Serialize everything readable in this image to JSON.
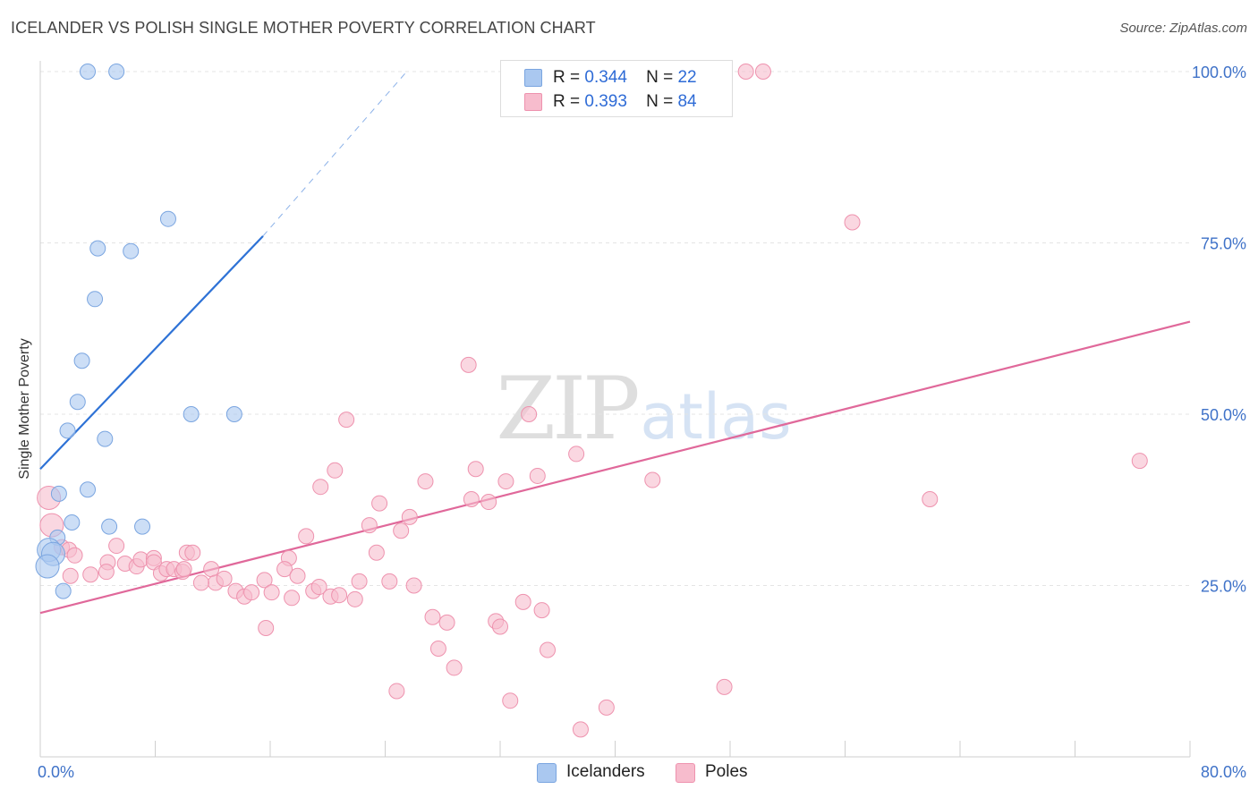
{
  "title": "ICELANDER VS POLISH SINGLE MOTHER POVERTY CORRELATION CHART",
  "source": "Source: ZipAtlas.com",
  "watermark": {
    "zip": "ZIP",
    "atlas": "atlas"
  },
  "legend": {
    "rows": [
      {
        "r_label": "R =",
        "r_value": "0.344",
        "n_label": "N =",
        "n_value": "22",
        "color": "#aac8f0",
        "border": "#7aa5e0"
      },
      {
        "r_label": "R =",
        "r_value": "0.393",
        "n_label": "N =",
        "n_value": "84",
        "color": "#f7bccd",
        "border": "#ee92ae"
      }
    ]
  },
  "bottom_legend": [
    {
      "label": "Icelanders",
      "color": "#aac8f0"
    },
    {
      "label": "Poles",
      "color": "#f7bccd"
    }
  ],
  "chart_data": {
    "type": "scatter",
    "title": "ICELANDER VS POLISH SINGLE MOTHER POVERTY CORRELATION CHART",
    "xlabel": "",
    "ylabel": "Single Mother Poverty",
    "xlim": [
      0,
      80
    ],
    "ylim": [
      0,
      100
    ],
    "x_tick_labels": [
      "0.0%",
      "80.0%"
    ],
    "y_tick_labels": [
      "25.0%",
      "50.0%",
      "75.0%",
      "100.0%"
    ],
    "y_ticks": [
      25,
      50,
      75,
      100
    ],
    "grid": true,
    "legend_position": "top-center",
    "series": [
      {
        "name": "Icelanders",
        "color": "#aac8f0",
        "stroke": "#7aa5e0",
        "line_color": "#2e72d6",
        "trend": {
          "x": [
            0,
            15.5
          ],
          "y": [
            42,
            76
          ],
          "extended_to": [
            25.5,
            100
          ]
        },
        "points": [
          [
            3.3,
            100
          ],
          [
            5.3,
            100
          ],
          [
            8.9,
            78.5
          ],
          [
            4.0,
            74.2
          ],
          [
            6.3,
            73.8
          ],
          [
            3.8,
            66.8
          ],
          [
            2.9,
            57.8
          ],
          [
            2.6,
            51.8
          ],
          [
            10.5,
            50
          ],
          [
            13.5,
            50
          ],
          [
            1.9,
            47.6
          ],
          [
            4.5,
            46.4
          ],
          [
            1.3,
            38.4
          ],
          [
            3.3,
            39
          ],
          [
            2.2,
            34.2
          ],
          [
            4.8,
            33.6
          ],
          [
            7.1,
            33.6
          ],
          [
            1.2,
            32
          ],
          [
            0.6,
            30.2
          ],
          [
            0.9,
            29.6
          ],
          [
            0.5,
            27.8
          ],
          [
            1.6,
            24.2
          ]
        ]
      },
      {
        "name": "Poles",
        "color": "#f7bccd",
        "stroke": "#ee92ae",
        "line_color": "#e0689a",
        "trend": {
          "x": [
            0,
            80
          ],
          "y": [
            21,
            63.5
          ]
        },
        "points": [
          [
            36.6,
            100
          ],
          [
            43.3,
            100
          ],
          [
            49.1,
            100
          ],
          [
            50.3,
            100
          ],
          [
            56.5,
            78
          ],
          [
            29.8,
            57.2
          ],
          [
            21.3,
            49.2
          ],
          [
            34.0,
            50
          ],
          [
            37.3,
            44.2
          ],
          [
            76.5,
            43.2
          ],
          [
            20.5,
            41.8
          ],
          [
            30.3,
            42
          ],
          [
            34.6,
            41
          ],
          [
            19.5,
            39.4
          ],
          [
            26.8,
            40.2
          ],
          [
            32.4,
            40.2
          ],
          [
            42.6,
            40.4
          ],
          [
            61.9,
            37.6
          ],
          [
            23.6,
            37
          ],
          [
            30.0,
            37.6
          ],
          [
            31.2,
            37.2
          ],
          [
            25.7,
            35
          ],
          [
            22.9,
            33.8
          ],
          [
            25.1,
            33
          ],
          [
            18.5,
            32.2
          ],
          [
            0.6,
            37.8
          ],
          [
            0.8,
            33.8
          ],
          [
            1.5,
            30.6
          ],
          [
            2.0,
            30.2
          ],
          [
            2.4,
            29.4
          ],
          [
            5.3,
            30.8
          ],
          [
            10.2,
            29.8
          ],
          [
            10.6,
            29.8
          ],
          [
            17.3,
            29
          ],
          [
            23.4,
            29.8
          ],
          [
            3.5,
            26.6
          ],
          [
            4.7,
            28.4
          ],
          [
            4.6,
            27
          ],
          [
            5.9,
            28.2
          ],
          [
            6.7,
            27.8
          ],
          [
            7.0,
            28.8
          ],
          [
            7.9,
            29
          ],
          [
            7.9,
            28.4
          ],
          [
            8.4,
            26.8
          ],
          [
            8.8,
            27.4
          ],
          [
            9.3,
            27.4
          ],
          [
            9.9,
            27
          ],
          [
            11.9,
            27.4
          ],
          [
            12.2,
            25.4
          ],
          [
            11.2,
            25.4
          ],
          [
            12.8,
            26
          ],
          [
            13.6,
            24.2
          ],
          [
            14.2,
            23.4
          ],
          [
            14.7,
            24
          ],
          [
            15.6,
            25.8
          ],
          [
            16.1,
            24
          ],
          [
            17.0,
            27.4
          ],
          [
            17.9,
            26.4
          ],
          [
            17.5,
            23.2
          ],
          [
            19.0,
            24.2
          ],
          [
            19.4,
            24.8
          ],
          [
            20.2,
            23.4
          ],
          [
            21.9,
            23
          ],
          [
            22.2,
            25.6
          ],
          [
            24.3,
            25.6
          ],
          [
            26.0,
            25
          ],
          [
            15.7,
            18.8
          ],
          [
            27.3,
            20.4
          ],
          [
            28.3,
            19.6
          ],
          [
            31.7,
            19.8
          ],
          [
            32.0,
            19
          ],
          [
            33.6,
            22.6
          ],
          [
            34.9,
            21.4
          ],
          [
            27.7,
            15.8
          ],
          [
            28.8,
            13
          ],
          [
            35.3,
            15.6
          ],
          [
            24.8,
            9.6
          ],
          [
            32.7,
            8.2
          ],
          [
            47.6,
            10.2
          ],
          [
            39.4,
            7.2
          ],
          [
            37.6,
            4
          ],
          [
            20.8,
            23.6
          ],
          [
            2.1,
            26.4
          ],
          [
            10.0,
            27.4
          ]
        ]
      }
    ]
  }
}
